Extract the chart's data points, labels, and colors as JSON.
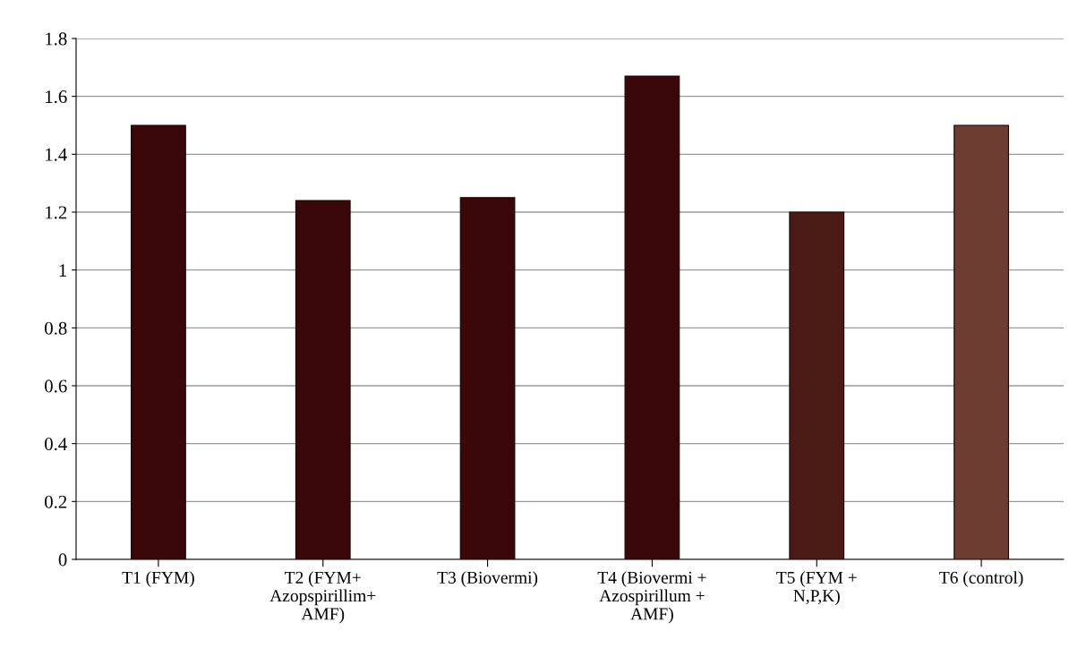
{
  "chart_data": {
    "type": "bar",
    "categories": [
      "T1 (FYM)",
      "T2 (FYM+\nAzopspirillim+\nAMF)",
      "T3 (Biovermi)",
      "T4 (Biovermi +\nAzospirillum +\nAMF)",
      "T5 (FYM +\nN,P,K)",
      "T6 (control)"
    ],
    "values": [
      1.5,
      1.24,
      1.25,
      1.67,
      1.2,
      1.5
    ],
    "colors": [
      "#3a0808",
      "#3a0808",
      "#3a0808",
      "#3a0808",
      "#4a1a14",
      "#6e3d32"
    ],
    "ylim": [
      0,
      1.8
    ],
    "yticks": [
      0,
      0.2,
      0.4,
      0.6,
      0.8,
      1,
      1.2,
      1.4,
      1.6,
      1.8
    ],
    "grid": "y"
  }
}
